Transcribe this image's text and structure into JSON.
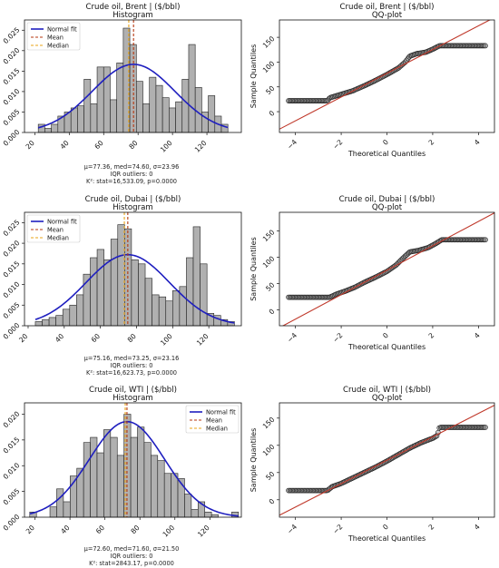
{
  "chart_data": [
    {
      "type": "bar",
      "panel": "histogram",
      "title": "Crude oil, Brent | ($/bbl)",
      "subtitle": "Histogram",
      "xticks": [
        20,
        40,
        60,
        80,
        100,
        120
      ],
      "yticks": [
        "0.000",
        "0.005",
        "0.010",
        "0.015",
        "0.020",
        "0.025"
      ],
      "xlim": [
        14,
        140
      ],
      "ylim": [
        0,
        0.0275
      ],
      "bins": {
        "start": 22,
        "width": 3.8,
        "values": [
          0.002,
          0.001,
          0.002,
          0.004,
          0.005,
          0.006,
          0.0065,
          0.013,
          0.007,
          0.016,
          0.016,
          0.008,
          0.017,
          0.0255,
          0.0215,
          0.0125,
          0.007,
          0.0135,
          0.0115,
          0.0085,
          0.006,
          0.0075,
          0.013,
          0.0215,
          0.011,
          0.005,
          0.009,
          0.004,
          0.002
        ]
      },
      "normal_fit": {
        "name": "Normal fit",
        "mu": 77.36,
        "sigma": 23.96
      },
      "mean": {
        "name": "Mean",
        "value": 77.36
      },
      "median": {
        "name": "Median",
        "value": 74.6
      },
      "legend_position": "upper-left",
      "stats_lines": [
        "μ=77.36, med=74.60, σ=23.96",
        "IQR outliers: 0",
        "K²: stat=16,533.09, p=0.0000"
      ]
    },
    {
      "type": "scatter",
      "panel": "qq",
      "title": "Crude oil, Brent | ($/bbl)",
      "subtitle": "QQ-plot",
      "xlabel": "Theoretical Quantiles",
      "ylabel": "Sample Quantiles",
      "xticks": [
        -4,
        -2,
        0,
        2,
        4
      ],
      "yticks": [
        0,
        50,
        100,
        150
      ],
      "xlim": [
        -4.7,
        4.7
      ],
      "ylim": [
        -42,
        185
      ],
      "line": {
        "slope": 23.96,
        "intercept": 77.36
      },
      "curve": [
        [
          -4.3,
          22
        ],
        [
          -2.6,
          22
        ],
        [
          -2.5,
          28
        ],
        [
          -2.0,
          35
        ],
        [
          -1.5,
          42
        ],
        [
          -1.0,
          52
        ],
        [
          -0.5,
          63
        ],
        [
          0.0,
          75
        ],
        [
          0.5,
          88
        ],
        [
          0.8,
          100
        ],
        [
          1.0,
          112
        ],
        [
          1.3,
          117
        ],
        [
          1.7,
          120
        ],
        [
          2.0,
          126
        ],
        [
          2.3,
          133
        ],
        [
          4.3,
          133
        ]
      ]
    },
    {
      "type": "bar",
      "panel": "histogram",
      "title": "Crude oil, Dubai | ($/bbl)",
      "subtitle": "Histogram",
      "xticks": [
        20,
        40,
        60,
        80,
        100,
        120
      ],
      "yticks": [
        "0.000",
        "0.005",
        "0.010",
        "0.015",
        "0.020",
        "0.025"
      ],
      "xlim": [
        18,
        138
      ],
      "ylim": [
        0,
        0.0275
      ],
      "bins": {
        "start": 24,
        "width": 3.8,
        "values": [
          0.001,
          0.0015,
          0.002,
          0.0025,
          0.004,
          0.005,
          0.0075,
          0.0125,
          0.0165,
          0.0185,
          0.016,
          0.021,
          0.0245,
          0.0235,
          0.016,
          0.015,
          0.0115,
          0.0075,
          0.007,
          0.006,
          0.0085,
          0.0095,
          0.0165,
          0.024,
          0.015,
          0.003,
          0.0025,
          0.0015,
          0.001
        ]
      },
      "normal_fit": {
        "name": "Normal fit",
        "mu": 75.16,
        "sigma": 23.16
      },
      "mean": {
        "name": "Mean",
        "value": 75.16
      },
      "median": {
        "name": "Median",
        "value": 73.25
      },
      "legend_position": "upper-left",
      "stats_lines": [
        "μ=75.16, med=73.25, σ=23.16",
        "IQR outliers: 0",
        "K²: stat=16,623.73, p=0.0000"
      ]
    },
    {
      "type": "scatter",
      "panel": "qq",
      "title": "Crude oil, Dubai | ($/bbl)",
      "subtitle": "QQ-plot",
      "xlabel": "Theoretical Quantiles",
      "ylabel": "Sample Quantiles",
      "xticks": [
        -4,
        -2,
        0,
        2,
        4
      ],
      "yticks": [
        0,
        50,
        100,
        150
      ],
      "xlim": [
        -4.7,
        4.7
      ],
      "ylim": [
        -30,
        185
      ],
      "line": {
        "slope": 23.16,
        "intercept": 75.16
      },
      "curve": [
        [
          -4.3,
          24
        ],
        [
          -2.5,
          24
        ],
        [
          -2.2,
          30
        ],
        [
          -1.8,
          36
        ],
        [
          -1.4,
          43
        ],
        [
          -1.0,
          52
        ],
        [
          -0.5,
          62
        ],
        [
          0.0,
          73
        ],
        [
          0.4,
          85
        ],
        [
          0.7,
          98
        ],
        [
          1.0,
          110
        ],
        [
          1.4,
          113
        ],
        [
          1.8,
          118
        ],
        [
          2.1,
          125
        ],
        [
          2.4,
          133
        ],
        [
          4.3,
          133
        ]
      ]
    },
    {
      "type": "bar",
      "panel": "histogram",
      "title": "Crude oil, WTI | ($/bbl)",
      "subtitle": "Histogram",
      "xticks": [
        20,
        40,
        60,
        80,
        100,
        120
      ],
      "yticks": [
        "0.000",
        "0.005",
        "0.010",
        "0.015",
        "0.020"
      ],
      "xlim": [
        14,
        138
      ],
      "ylim": [
        0,
        0.0222
      ],
      "bins": {
        "start": 17,
        "width": 3.85,
        "values": [
          0.001,
          0.0,
          0.0,
          0.002,
          0.0055,
          0.003,
          0.008,
          0.0095,
          0.0145,
          0.0155,
          0.0125,
          0.017,
          0.0155,
          0.012,
          0.02,
          0.0155,
          0.0175,
          0.0145,
          0.012,
          0.011,
          0.0085,
          0.0085,
          0.0075,
          0.0045,
          0.0015,
          0.003,
          0.001,
          0.0005,
          0.0,
          0.0,
          0.001
        ]
      },
      "normal_fit": {
        "name": "Normal fit",
        "mu": 72.6,
        "sigma": 21.5
      },
      "mean": {
        "name": "Mean",
        "value": 72.6
      },
      "median": {
        "name": "Median",
        "value": 71.6
      },
      "legend_position": "upper-right",
      "stats_lines": [
        "μ=72.60, med=71.60, σ=21.50",
        "IQR outliers: 0",
        "K²: stat=2843.17, p=0.0000"
      ]
    },
    {
      "type": "scatter",
      "panel": "qq",
      "title": "Crude oil, WTI | ($/bbl)",
      "subtitle": "QQ-plot",
      "xlabel": "Theoretical Quantiles",
      "ylabel": "Sample Quantiles",
      "xticks": [
        -4,
        -2,
        0,
        2,
        4
      ],
      "yticks": [
        0,
        50,
        100,
        150
      ],
      "xlim": [
        -4.7,
        4.7
      ],
      "ylim": [
        -32,
        178
      ],
      "line": {
        "slope": 21.5,
        "intercept": 72.6
      },
      "curve": [
        [
          -4.3,
          17
        ],
        [
          -2.6,
          17
        ],
        [
          -2.4,
          24
        ],
        [
          -2.0,
          30
        ],
        [
          -1.5,
          40
        ],
        [
          -1.0,
          50
        ],
        [
          -0.5,
          60
        ],
        [
          0.0,
          71
        ],
        [
          0.5,
          83
        ],
        [
          1.0,
          95
        ],
        [
          1.5,
          105
        ],
        [
          2.0,
          113
        ],
        [
          2.2,
          118
        ],
        [
          2.3,
          133
        ],
        [
          4.3,
          133
        ]
      ]
    }
  ],
  "colors": {
    "bar_fill": "#b0b0b0",
    "bar_edge": "#222222",
    "fit": "#1f1fbf",
    "mean": "#b5370f",
    "median": "#e8a317",
    "qq_line": "#c0392b",
    "qq_marker_edge": "#222222",
    "qq_marker_fill": "#8c8c8c"
  }
}
